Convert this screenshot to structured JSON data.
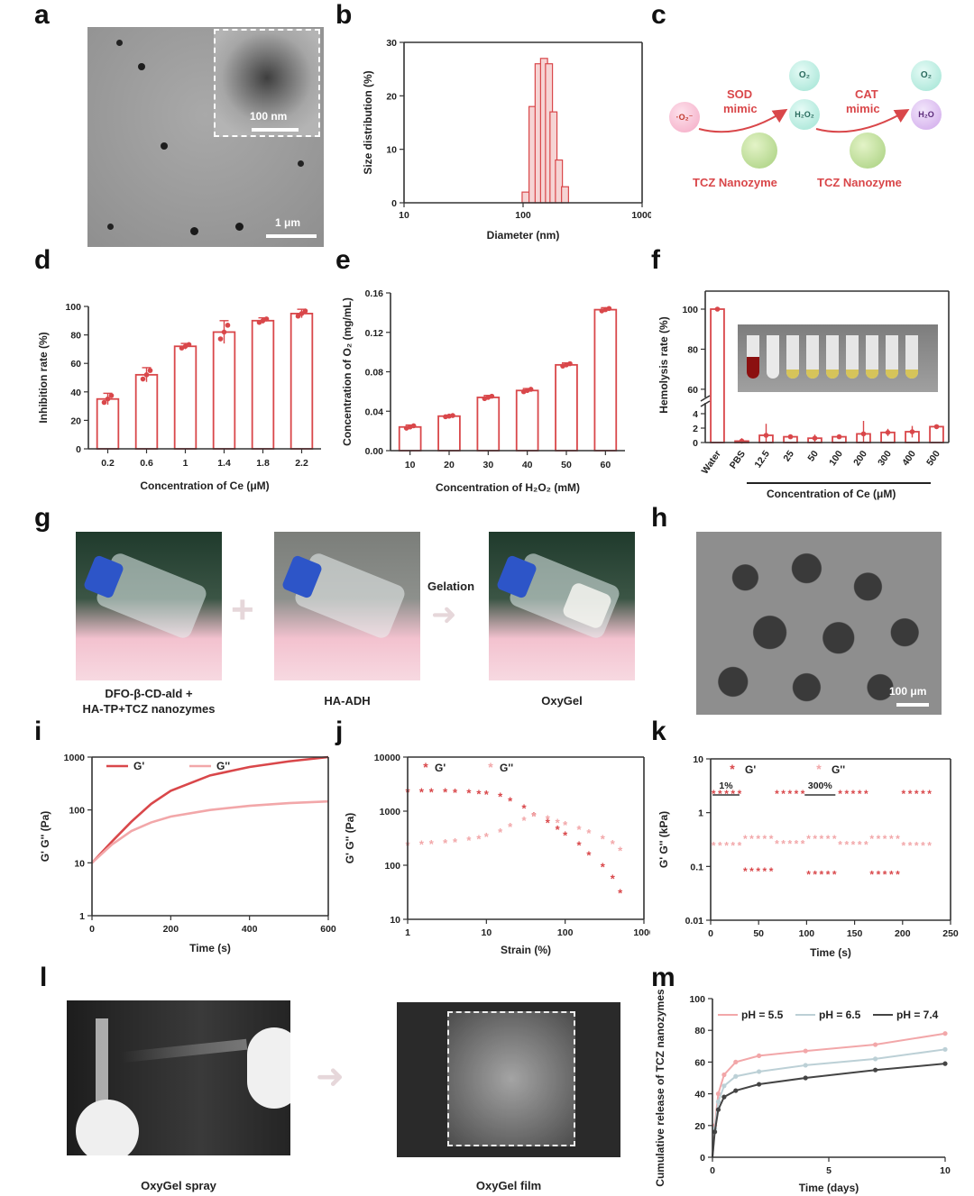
{
  "panels": {
    "a": "a",
    "b": "b",
    "c": "c",
    "d": "d",
    "e": "e",
    "f": "f",
    "g": "g",
    "h": "h",
    "i": "i",
    "j": "j",
    "k": "k",
    "l": "l",
    "m": "m"
  },
  "panel_a": {
    "inset_scale": "100 nm",
    "scale": "1 μm"
  },
  "panel_c": {
    "superoxide": "·O₂⁻",
    "sod_label": "SOD",
    "mimic": "mimic",
    "cat_label": "CAT",
    "o2": "O₂",
    "h2o2": "H₂O₂",
    "h2o": "H₂O",
    "nanozyme": "TCZ Nanozyme"
  },
  "panel_f": {
    "bracket_label": "Concentration of Ce (μM)"
  },
  "panel_g": {
    "caption1_line1": "DFO-β-CD-ald +",
    "caption1_line2": "HA-TP+TCZ nanozymes",
    "caption2": "HA-ADH",
    "caption3": "OxyGel",
    "arrow_label": "Gelation"
  },
  "panel_h": {
    "scale": "100 μm"
  },
  "panel_k": {
    "strain_low": "1%",
    "strain_high": "300%"
  },
  "panel_l": {
    "caption1": "OxyGel spray",
    "caption2": "OxyGel film"
  },
  "colors": {
    "accent": "#d9474a",
    "light": "#f2a7a9",
    "dark": "#444444"
  },
  "chart_data": [
    {
      "id": "b",
      "type": "bar",
      "title": "",
      "xlabel": "Diameter (nm)",
      "ylabel": "Size distribution (%)",
      "xscale": "log",
      "xlim": [
        10,
        1000
      ],
      "ylim": [
        0,
        30
      ],
      "xticks": [
        "10",
        "100",
        "1000"
      ],
      "yticks": [
        "0",
        "10",
        "20",
        "30"
      ],
      "x": [
        105,
        120,
        135,
        150,
        165,
        180,
        200,
        225
      ],
      "values": [
        2,
        18,
        26,
        27,
        26,
        17,
        8,
        3
      ]
    },
    {
      "id": "d",
      "type": "bar",
      "xlabel": "Concentration of Ce (μM)",
      "ylabel": "Inhibition rate (%)",
      "ylim": [
        0,
        100
      ],
      "yticks": [
        "0",
        "20",
        "40",
        "60",
        "80",
        "100"
      ],
      "categories": [
        "0.2",
        "0.6",
        "1",
        "1.4",
        "1.8",
        "2.2"
      ],
      "values": [
        35,
        52,
        72,
        82,
        90,
        95
      ],
      "errors": [
        4,
        5,
        2,
        8,
        2,
        3
      ]
    },
    {
      "id": "e",
      "type": "bar",
      "xlabel": "Concentration of H₂O₂ (mM)",
      "ylabel": "Concentration of O₂ (mg/mL)",
      "ylim": [
        0,
        0.16
      ],
      "yticks": [
        "0.00",
        "0.04",
        "0.08",
        "0.12",
        "0.16"
      ],
      "categories": [
        "10",
        "20",
        "30",
        "40",
        "50",
        "60"
      ],
      "values": [
        0.024,
        0.035,
        0.054,
        0.061,
        0.087,
        0.143
      ],
      "errors": [
        0.002,
        0.001,
        0.002,
        0.002,
        0.002,
        0.002
      ]
    },
    {
      "id": "f",
      "type": "bar",
      "xlabel": "Concentration of Ce (μM)",
      "ylabel": "Hemolysis rate (%)",
      "yticks": [
        "0",
        "2",
        "4",
        "60",
        "80",
        "100"
      ],
      "categories": [
        "Water",
        "PBS",
        "12.5",
        "25",
        "50",
        "100",
        "200",
        "300",
        "400",
        "500"
      ],
      "values": [
        100,
        0.2,
        1.0,
        0.8,
        0.6,
        0.8,
        1.2,
        1.4,
        1.5,
        2.2
      ],
      "errors": [
        1,
        0.4,
        1.6,
        0.3,
        0.5,
        0.3,
        1.8,
        0.5,
        0.8,
        0.3
      ]
    },
    {
      "id": "i",
      "type": "line",
      "xlabel": "Time (s)",
      "ylabel": "G' G'' (Pa)",
      "xlim": [
        0,
        600
      ],
      "ylim": [
        1,
        1000
      ],
      "yscale": "log",
      "xticks": [
        "0",
        "200",
        "400",
        "600"
      ],
      "yticks": [
        "1",
        "10",
        "100",
        "1000"
      ],
      "series": [
        {
          "name": "G'",
          "x": [
            0,
            50,
            100,
            150,
            200,
            300,
            400,
            500,
            600
          ],
          "values": [
            10,
            25,
            60,
            130,
            230,
            450,
            650,
            830,
            1000
          ]
        },
        {
          "name": "G''",
          "x": [
            0,
            50,
            100,
            150,
            200,
            300,
            400,
            500,
            600
          ],
          "values": [
            10,
            22,
            40,
            58,
            75,
            100,
            120,
            135,
            145
          ]
        }
      ]
    },
    {
      "id": "j",
      "type": "scatter",
      "xlabel": "Strain (%)",
      "ylabel": "G' G'' (Pa)",
      "xscale": "log",
      "yscale": "log",
      "xlim": [
        1,
        1000
      ],
      "ylim": [
        10,
        10000
      ],
      "xticks": [
        "1",
        "10",
        "100",
        "1000"
      ],
      "yticks": [
        "10",
        "100",
        "1000",
        "10000"
      ],
      "series": [
        {
          "name": "G'",
          "x": [
            1,
            1.5,
            2,
            3,
            4,
            6,
            8,
            10,
            15,
            20,
            30,
            40,
            60,
            80,
            100,
            150,
            200,
            300,
            400,
            500
          ],
          "values": [
            2200,
            2200,
            2200,
            2180,
            2150,
            2100,
            2050,
            2000,
            1800,
            1500,
            1100,
            800,
            600,
            450,
            350,
            230,
            150,
            90,
            55,
            30
          ]
        },
        {
          "name": "G''",
          "x": [
            1,
            1.5,
            2,
            3,
            4,
            6,
            8,
            10,
            15,
            20,
            30,
            40,
            60,
            80,
            100,
            150,
            200,
            300,
            400,
            500
          ],
          "values": [
            230,
            235,
            240,
            250,
            260,
            280,
            300,
            330,
            400,
            500,
            650,
            780,
            700,
            600,
            540,
            450,
            380,
            300,
            240,
            180
          ]
        }
      ]
    },
    {
      "id": "k",
      "type": "scatter",
      "xlabel": "Time (s)",
      "ylabel": "G' G'' (kPa)",
      "yscale": "log",
      "xlim": [
        0,
        250
      ],
      "ylim": [
        0.01,
        10
      ],
      "xticks": [
        "0",
        "50",
        "100",
        "150",
        "200",
        "250"
      ],
      "yticks": [
        "0.01",
        "0.1",
        "1",
        "10"
      ],
      "series": [
        {
          "name": "G'",
          "segments": [
            {
              "x0": 3,
              "x1": 30,
              "value": 2.2
            },
            {
              "x0": 36,
              "x1": 63,
              "value": 0.08
            },
            {
              "x0": 69,
              "x1": 96,
              "value": 2.2
            },
            {
              "x0": 102,
              "x1": 129,
              "value": 0.07
            },
            {
              "x0": 135,
              "x1": 162,
              "value": 2.2
            },
            {
              "x0": 168,
              "x1": 195,
              "value": 0.07
            },
            {
              "x0": 201,
              "x1": 228,
              "value": 2.2
            }
          ]
        },
        {
          "name": "G''",
          "segments": [
            {
              "x0": 3,
              "x1": 30,
              "value": 0.24
            },
            {
              "x0": 36,
              "x1": 63,
              "value": 0.32
            },
            {
              "x0": 69,
              "x1": 96,
              "value": 0.26
            },
            {
              "x0": 102,
              "x1": 129,
              "value": 0.32
            },
            {
              "x0": 135,
              "x1": 162,
              "value": 0.25
            },
            {
              "x0": 168,
              "x1": 195,
              "value": 0.32
            },
            {
              "x0": 201,
              "x1": 228,
              "value": 0.24
            }
          ]
        }
      ]
    },
    {
      "id": "m",
      "type": "line",
      "xlabel": "Time (days)",
      "ylabel": "Cumulative release of TCZ nanozymes (%)",
      "xlim": [
        0,
        10
      ],
      "ylim": [
        0,
        100
      ],
      "xticks": [
        "0",
        "5",
        "10"
      ],
      "yticks": [
        "0",
        "20",
        "40",
        "60",
        "80",
        "100"
      ],
      "series": [
        {
          "name": "pH = 5.5",
          "x": [
            0,
            0.1,
            0.25,
            0.5,
            1,
            2,
            4,
            7,
            10
          ],
          "values": [
            0,
            20,
            40,
            52,
            60,
            64,
            67,
            71,
            78
          ]
        },
        {
          "name": "pH = 6.5",
          "x": [
            0,
            0.1,
            0.25,
            0.5,
            1,
            2,
            4,
            7,
            10
          ],
          "values": [
            0,
            18,
            35,
            45,
            51,
            54,
            58,
            62,
            68
          ]
        },
        {
          "name": "pH = 7.4",
          "x": [
            0,
            0.1,
            0.25,
            0.5,
            1,
            2,
            4,
            7,
            10
          ],
          "values": [
            0,
            16,
            30,
            38,
            42,
            46,
            50,
            55,
            59
          ]
        }
      ]
    }
  ]
}
